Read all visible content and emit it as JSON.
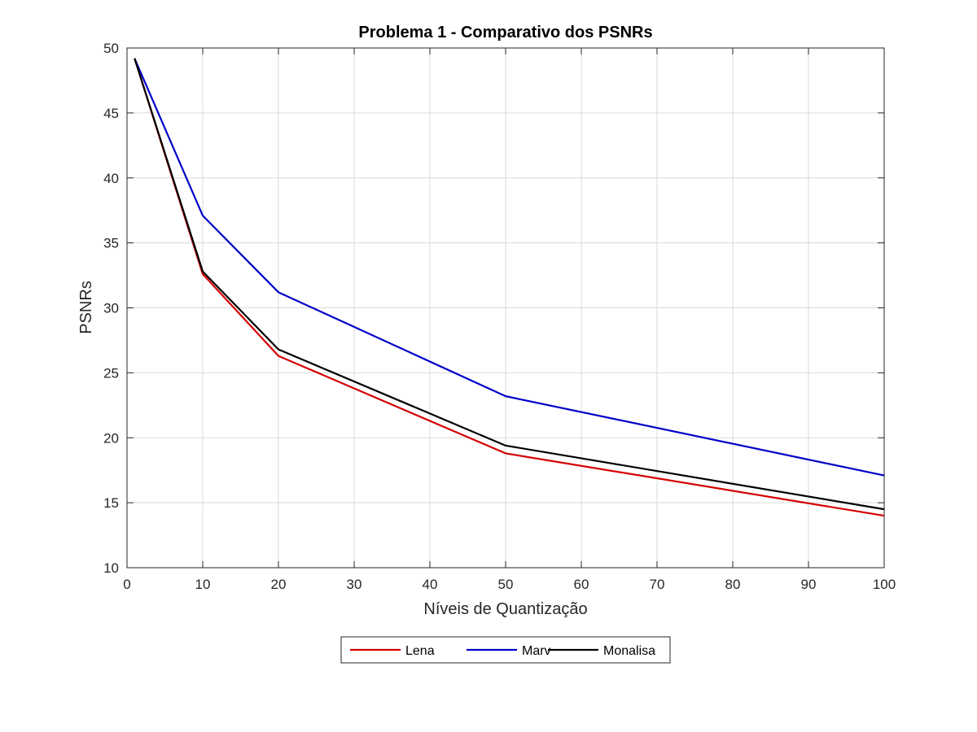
{
  "chart_data": {
    "type": "line",
    "title": "Problema 1 - Comparativo dos PSNRs",
    "xlabel": "Níveis de Quantização",
    "ylabel": "PSNRs",
    "xlim": [
      0,
      100
    ],
    "ylim": [
      10,
      50
    ],
    "xticks": [
      0,
      10,
      20,
      30,
      40,
      50,
      60,
      70,
      80,
      90,
      100
    ],
    "yticks": [
      10,
      15,
      20,
      25,
      30,
      35,
      40,
      45,
      50
    ],
    "grid": true,
    "legend_position": "bottom-outside",
    "x": [
      1,
      10,
      20,
      50,
      100
    ],
    "series": [
      {
        "name": "Lena",
        "color": "#d40000",
        "values": [
          49.2,
          32.6,
          26.3,
          18.8,
          14.0
        ]
      },
      {
        "name": "Marv",
        "color": "#0000c8",
        "values": [
          49.2,
          37.1,
          31.2,
          23.2,
          17.1
        ]
      },
      {
        "name": "Monalisa",
        "color": "#000000",
        "values": [
          49.2,
          32.8,
          26.8,
          19.4,
          14.5
        ]
      }
    ]
  }
}
